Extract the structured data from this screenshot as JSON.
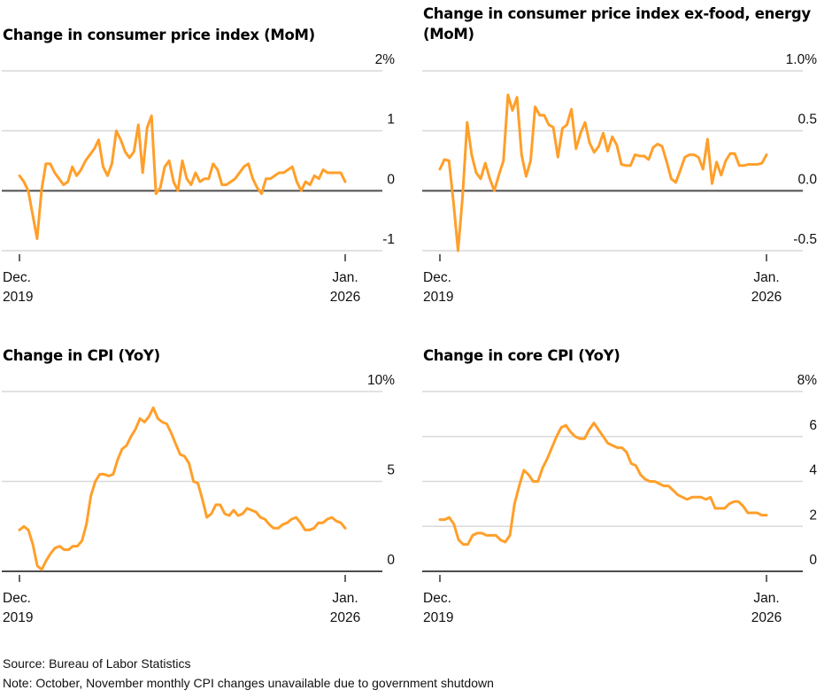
{
  "source": "Source: Bureau of Labor Statistics",
  "note": "Note: October, November monthly CPI changes unavailable due to government shutdown",
  "colors": {
    "line": "#ff9f2a",
    "grid": "#d9d9d9",
    "zero_axis": "#4d4d4d",
    "text": "#111111"
  },
  "chart_data": [
    {
      "id": "cpi-mom",
      "type": "line",
      "title": "Change in consumer price index (MoM)",
      "xlabel": "",
      "ylabel": "",
      "x_start": "Dec. 2019",
      "x_end": "Jan. 2026",
      "x_tick_labels": [
        [
          "Dec.",
          "2019"
        ],
        [
          "Jan.",
          "2026"
        ]
      ],
      "ylim": [
        -1,
        2
      ],
      "y_ticks": [
        2,
        1,
        0,
        -1
      ],
      "y_tick_labels": [
        "2%",
        "1",
        "0",
        "-1"
      ],
      "grid": true,
      "values": [
        0.25,
        0.15,
        0.0,
        -0.4,
        -0.8,
        0.0,
        0.45,
        0.45,
        0.3,
        0.2,
        0.1,
        0.15,
        0.4,
        0.25,
        0.35,
        0.5,
        0.6,
        0.7,
        0.85,
        0.4,
        0.25,
        0.45,
        1.0,
        0.85,
        0.65,
        0.55,
        0.65,
        1.1,
        0.3,
        1.05,
        1.25,
        -0.05,
        0.05,
        0.4,
        0.5,
        0.15,
        0.0,
        0.5,
        0.2,
        0.1,
        0.3,
        0.15,
        0.2,
        0.2,
        0.45,
        0.35,
        0.1,
        0.1,
        0.15,
        0.2,
        0.3,
        0.4,
        0.45,
        0.2,
        0.05,
        -0.05,
        0.2,
        0.2,
        0.25,
        0.3,
        0.3,
        0.35,
        0.4,
        0.15,
        0.0,
        0.15,
        0.1,
        0.25,
        0.2,
        0.35,
        0.3,
        0.3,
        0.3,
        0.3,
        0.15
      ]
    },
    {
      "id": "core-cpi-mom",
      "type": "line",
      "title": "Change in consumer price index ex-food, energy (MoM)",
      "xlabel": "",
      "ylabel": "",
      "x_start": "Dec. 2019",
      "x_end": "Jan. 2026",
      "x_tick_labels": [
        [
          "Dec.",
          "2019"
        ],
        [
          "Jan.",
          "2026"
        ]
      ],
      "ylim": [
        -0.5,
        1.0
      ],
      "y_ticks": [
        1.0,
        0.5,
        0.0,
        -0.5
      ],
      "y_tick_labels": [
        "1.0%",
        "0.5",
        "0.0",
        "-0.5"
      ],
      "grid": true,
      "values": [
        0.18,
        0.26,
        0.25,
        -0.1,
        -0.5,
        -0.05,
        0.57,
        0.3,
        0.15,
        0.1,
        0.23,
        0.1,
        0.0,
        0.13,
        0.25,
        0.8,
        0.67,
        0.78,
        0.3,
        0.12,
        0.25,
        0.7,
        0.63,
        0.63,
        0.55,
        0.53,
        0.28,
        0.52,
        0.55,
        0.68,
        0.35,
        0.48,
        0.57,
        0.4,
        0.32,
        0.37,
        0.48,
        0.33,
        0.45,
        0.38,
        0.22,
        0.21,
        0.21,
        0.3,
        0.29,
        0.29,
        0.26,
        0.36,
        0.39,
        0.37,
        0.24,
        0.1,
        0.07,
        0.17,
        0.28,
        0.3,
        0.3,
        0.28,
        0.18,
        0.43,
        0.06,
        0.24,
        0.13,
        0.25,
        0.31,
        0.31,
        0.21,
        0.21,
        0.22,
        0.22,
        0.22,
        0.23,
        0.3
      ]
    },
    {
      "id": "cpi-yoy",
      "type": "line",
      "title": "Change in CPI (YoY)",
      "xlabel": "",
      "ylabel": "",
      "x_start": "Dec. 2019",
      "x_end": "Jan. 2026",
      "x_tick_labels": [
        [
          "Dec.",
          "2019"
        ],
        [
          "Jan.",
          "2026"
        ]
      ],
      "ylim": [
        0,
        10
      ],
      "y_ticks": [
        10,
        5,
        0
      ],
      "y_tick_labels": [
        "10%",
        "5",
        "0"
      ],
      "grid": true,
      "values": [
        2.3,
        2.5,
        2.3,
        1.5,
        0.3,
        0.1,
        0.6,
        1.0,
        1.3,
        1.4,
        1.2,
        1.2,
        1.4,
        1.4,
        1.7,
        2.6,
        4.2,
        5.0,
        5.4,
        5.4,
        5.3,
        5.4,
        6.2,
        6.8,
        7.0,
        7.5,
        7.9,
        8.5,
        8.3,
        8.6,
        9.1,
        8.5,
        8.3,
        8.2,
        7.7,
        7.1,
        6.5,
        6.4,
        6.0,
        5.0,
        4.9,
        4.0,
        3.0,
        3.2,
        3.7,
        3.7,
        3.2,
        3.1,
        3.4,
        3.1,
        3.2,
        3.5,
        3.4,
        3.3,
        3.0,
        2.9,
        2.6,
        2.4,
        2.4,
        2.6,
        2.7,
        2.9,
        3.0,
        2.7,
        2.3,
        2.3,
        2.4,
        2.7,
        2.7,
        2.9,
        3.0,
        2.8,
        2.7,
        2.4
      ]
    },
    {
      "id": "core-cpi-yoy",
      "type": "line",
      "title": "Change in core CPI (YoY)",
      "xlabel": "",
      "ylabel": "",
      "x_start": "Dec. 2019",
      "x_end": "Jan. 2026",
      "x_tick_labels": [
        [
          "Dec.",
          "2019"
        ],
        [
          "Jan.",
          "2026"
        ]
      ],
      "ylim": [
        0,
        8
      ],
      "y_ticks": [
        8,
        6,
        4,
        2,
        0
      ],
      "y_tick_labels": [
        "8%",
        "6",
        "4",
        "2",
        "0"
      ],
      "grid": true,
      "values": [
        2.3,
        2.3,
        2.4,
        2.1,
        1.4,
        1.2,
        1.2,
        1.6,
        1.7,
        1.7,
        1.6,
        1.6,
        1.6,
        1.4,
        1.3,
        1.6,
        3.0,
        3.8,
        4.5,
        4.3,
        4.0,
        4.0,
        4.6,
        5.0,
        5.5,
        6.0,
        6.4,
        6.5,
        6.2,
        6.0,
        5.9,
        5.9,
        6.3,
        6.6,
        6.3,
        6.0,
        5.7,
        5.6,
        5.5,
        5.5,
        5.3,
        4.8,
        4.7,
        4.3,
        4.1,
        4.0,
        4.0,
        3.9,
        3.8,
        3.8,
        3.6,
        3.4,
        3.3,
        3.2,
        3.3,
        3.3,
        3.3,
        3.2,
        3.3,
        2.8,
        2.8,
        2.8,
        3.0,
        3.1,
        3.1,
        2.9,
        2.6,
        2.6,
        2.6,
        2.5,
        2.5
      ]
    }
  ]
}
